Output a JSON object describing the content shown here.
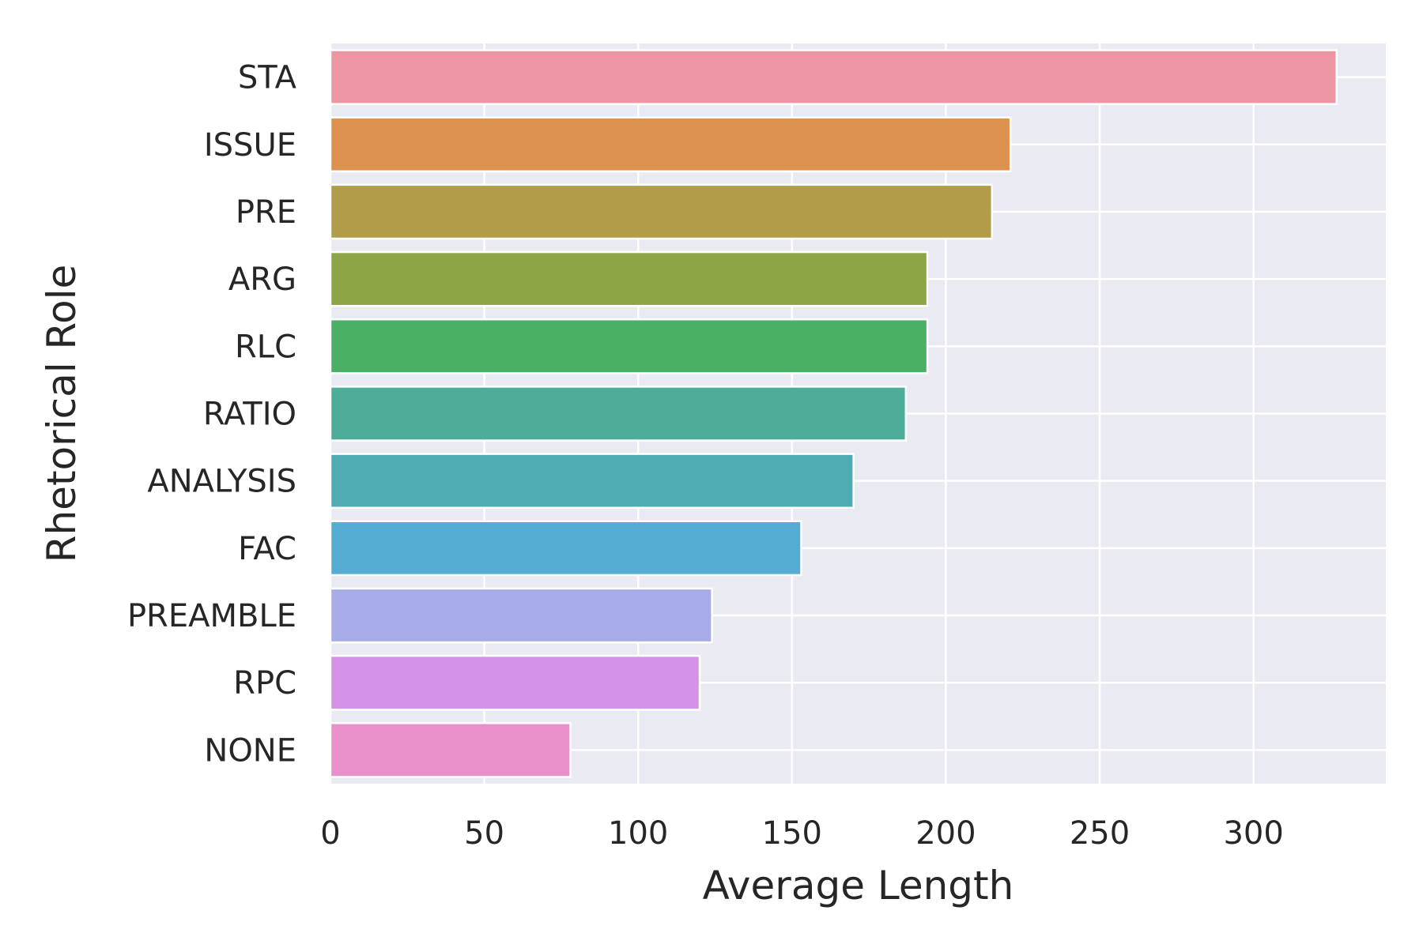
{
  "chart_data": {
    "type": "bar",
    "orientation": "horizontal",
    "title": "",
    "xlabel": "Average Length",
    "ylabel": "Rhetorical Role",
    "xlim": [
      0,
      343
    ],
    "xticks": [
      0,
      50,
      100,
      150,
      200,
      250,
      300
    ],
    "grid": true,
    "background": "#eaeaf2",
    "categories": [
      "STA",
      "ISSUE",
      "PRE",
      "ARG",
      "RLC",
      "RATIO",
      "ANALYSIS",
      "FAC",
      "PREAMBLE",
      "RPC",
      "NONE"
    ],
    "values": [
      327,
      221,
      215,
      194,
      194,
      187,
      170,
      153,
      124,
      120,
      78
    ],
    "colors": [
      "#ec96a4",
      "#dd914f",
      "#b19d49",
      "#8ea546",
      "#4ab065",
      "#4dad99",
      "#4facb2",
      "#55acd3",
      "#a7abe8",
      "#d593e7",
      "#e98fc9"
    ]
  }
}
